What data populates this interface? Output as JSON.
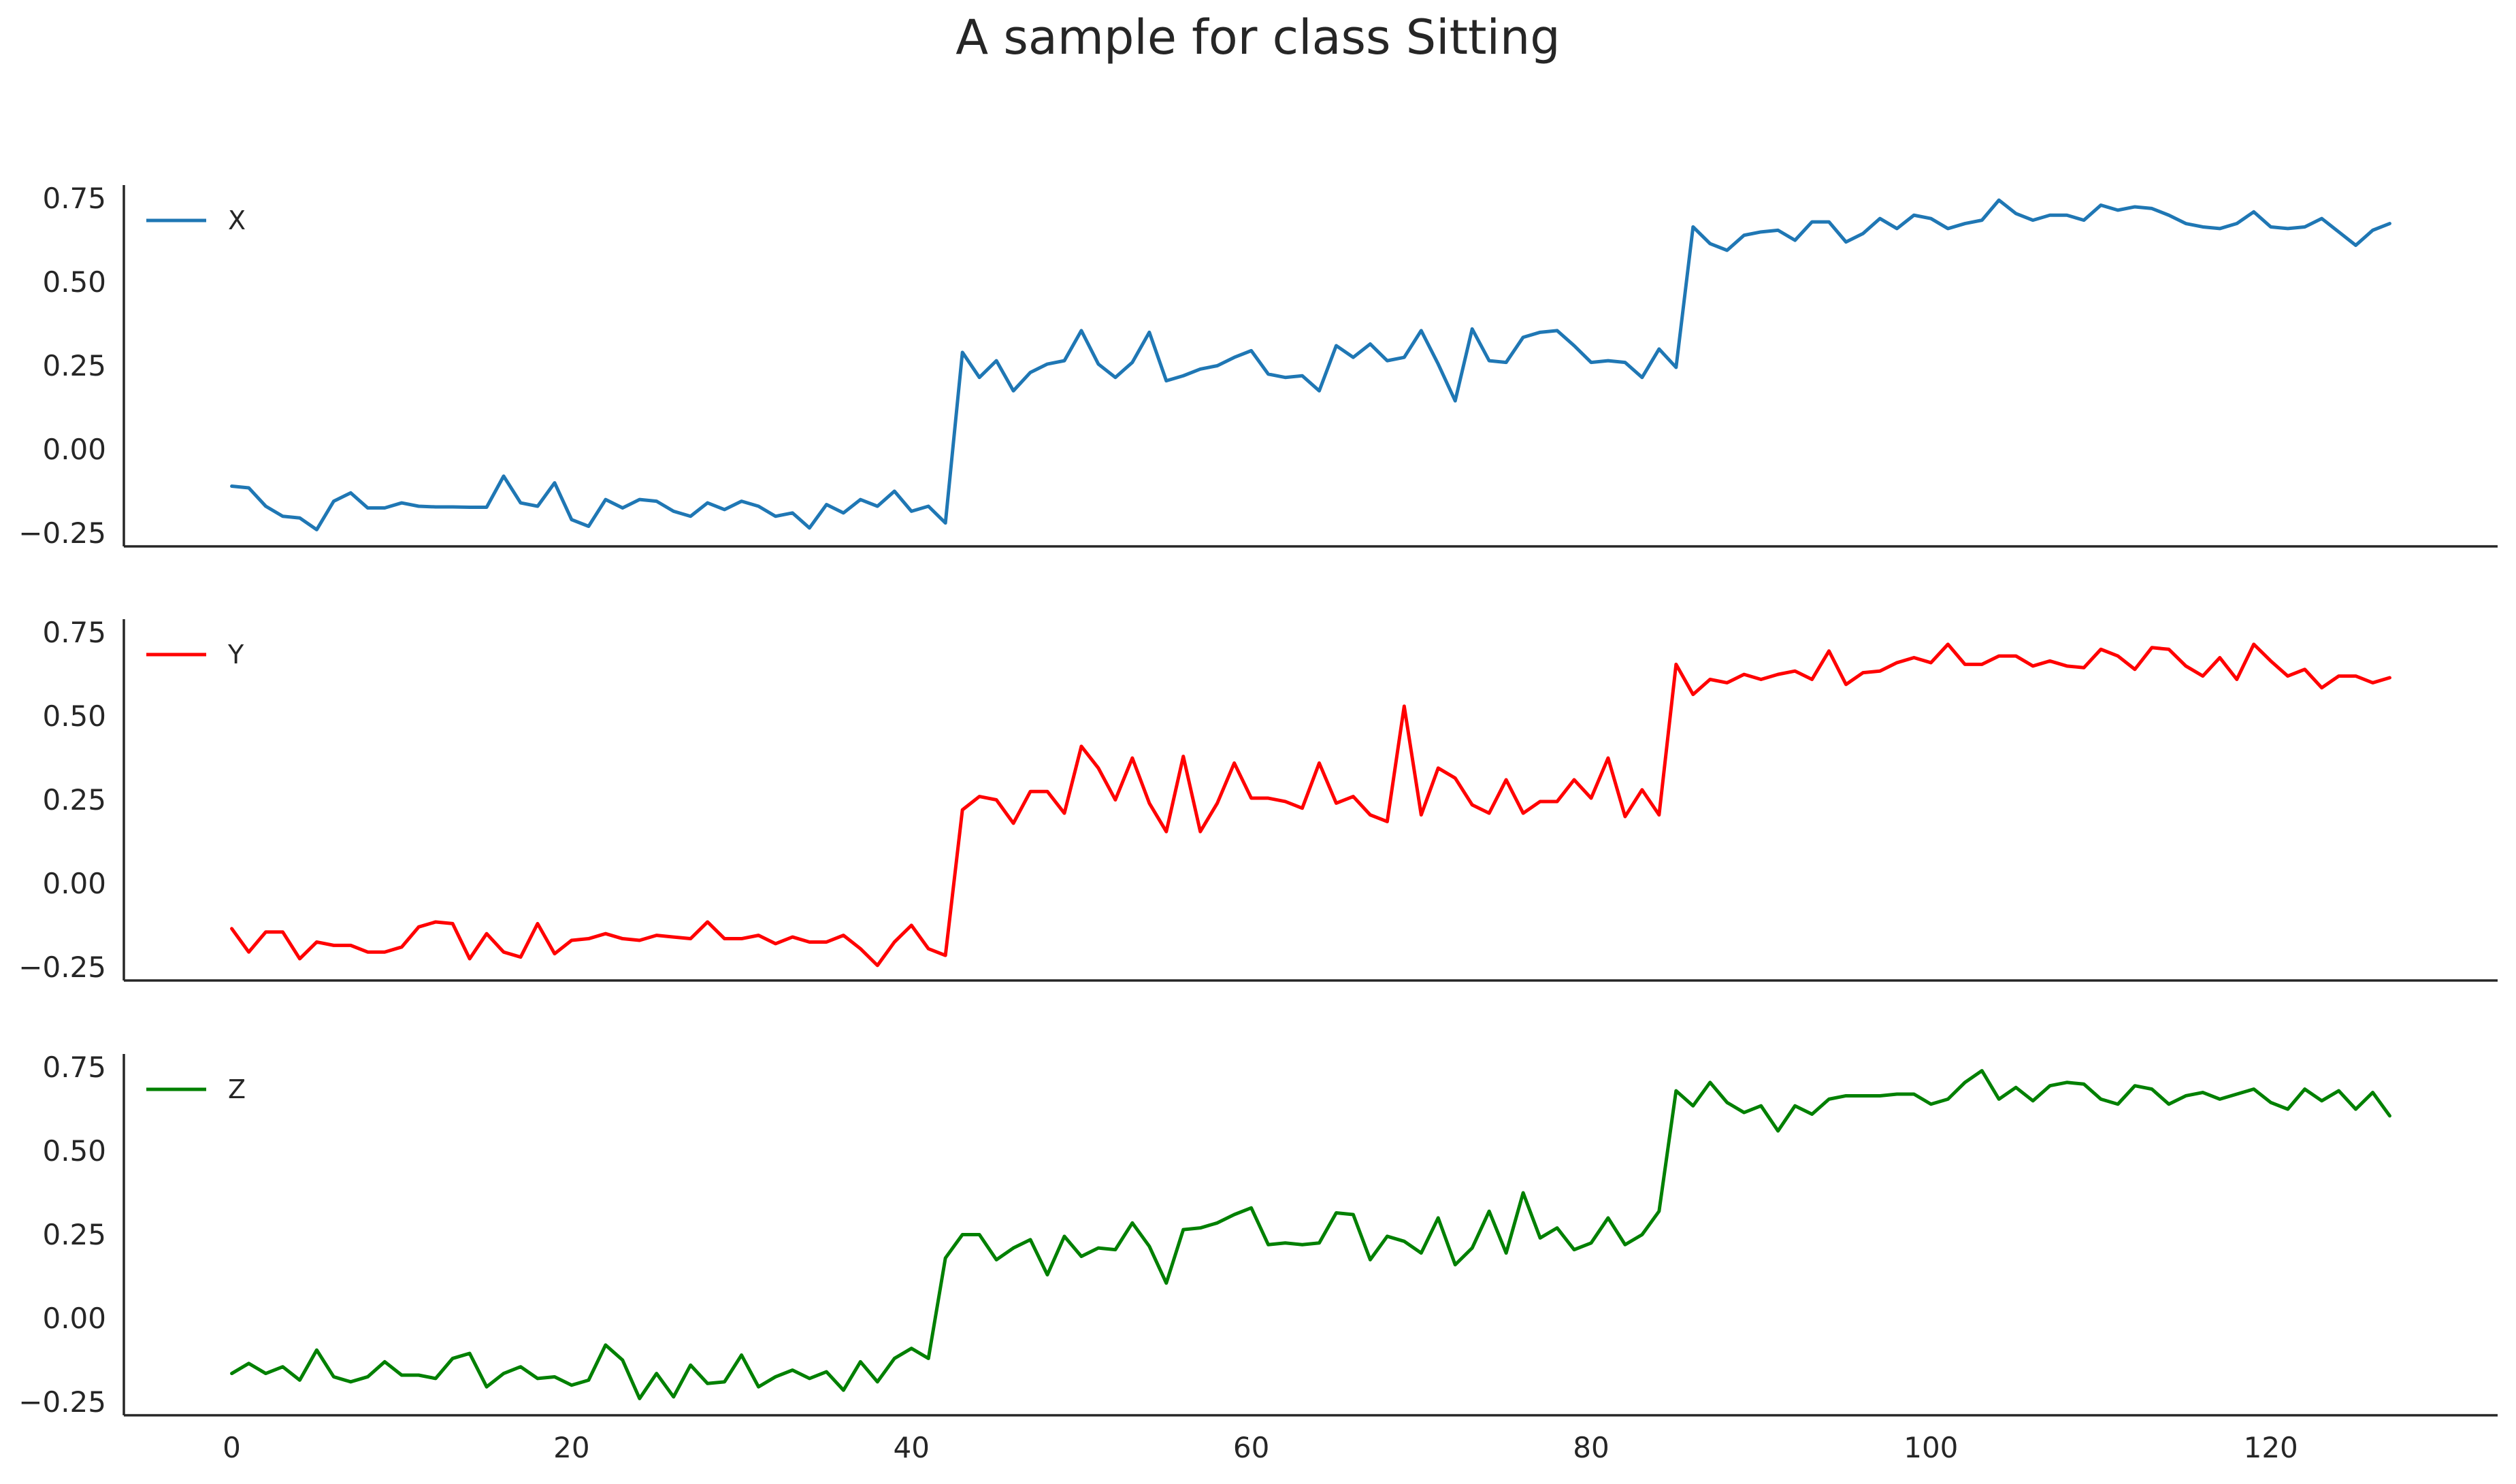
{
  "chart_data": {
    "type": "line",
    "title": "A sample for class Sitting",
    "xlabel": "",
    "ylabel": "",
    "x": [
      0,
      1,
      2,
      3,
      4,
      5,
      6,
      7,
      8,
      9,
      10,
      11,
      12,
      13,
      14,
      15,
      16,
      17,
      18,
      19,
      20,
      21,
      22,
      23,
      24,
      25,
      26,
      27,
      28,
      29,
      30,
      31,
      32,
      33,
      34,
      35,
      36,
      37,
      38,
      39,
      40,
      41,
      42,
      43,
      44,
      45,
      46,
      47,
      48,
      49,
      50,
      51,
      52,
      53,
      54,
      55,
      56,
      57,
      58,
      59,
      60,
      61,
      62,
      63,
      64,
      65,
      66,
      67,
      68,
      69,
      70,
      71,
      72,
      73,
      74,
      75,
      76,
      77,
      78,
      79,
      80,
      81,
      82,
      83,
      84,
      85,
      86,
      87,
      88,
      89,
      90,
      91,
      92,
      93,
      94,
      95,
      96,
      97,
      98,
      99,
      100,
      101,
      102,
      103,
      104,
      105,
      106,
      107,
      108,
      109,
      110,
      111,
      112,
      113,
      114,
      115,
      116,
      117,
      118,
      119,
      120,
      121,
      122,
      123,
      124,
      125,
      126,
      127
    ],
    "xlim": [
      -6.35,
      133.35
    ],
    "xticks": [
      0,
      20,
      40,
      60,
      80,
      100,
      120
    ],
    "ylim": [
      -0.29,
      0.79
    ],
    "yticks": [
      -0.25,
      0.0,
      0.25,
      0.5,
      0.75
    ],
    "ytick_labels": [
      "−0.25",
      "0.00",
      "0.25",
      "0.50",
      "0.75"
    ],
    "legend_position": "upper left",
    "grid": false,
    "shared_x": true,
    "series": [
      {
        "name": "X",
        "color": "#1f77b4",
        "values": [
          -0.11,
          -0.115,
          -0.17,
          -0.2,
          -0.205,
          -0.24,
          -0.155,
          -0.13,
          -0.175,
          -0.175,
          -0.16,
          -0.17,
          -0.172,
          -0.172,
          -0.173,
          -0.173,
          -0.08,
          -0.16,
          -0.17,
          -0.1,
          -0.21,
          -0.23,
          -0.15,
          -0.175,
          -0.15,
          -0.155,
          -0.185,
          -0.2,
          -0.16,
          -0.18,
          -0.155,
          -0.17,
          -0.2,
          -0.19,
          -0.235,
          -0.165,
          -0.19,
          -0.15,
          -0.17,
          -0.125,
          -0.185,
          -0.17,
          -0.22,
          0.29,
          0.215,
          0.265,
          0.175,
          0.23,
          0.255,
          0.265,
          0.355,
          0.255,
          0.215,
          0.26,
          0.35,
          0.205,
          0.22,
          0.24,
          0.25,
          0.275,
          0.295,
          0.225,
          0.215,
          0.22,
          0.175,
          0.31,
          0.275,
          0.315,
          0.265,
          0.275,
          0.355,
          0.255,
          0.145,
          0.36,
          0.265,
          0.26,
          0.335,
          0.35,
          0.355,
          0.31,
          0.26,
          0.265,
          0.26,
          0.215,
          0.3,
          0.245,
          0.665,
          0.615,
          0.595,
          0.64,
          0.65,
          0.655,
          0.625,
          0.68,
          0.68,
          0.62,
          0.645,
          0.69,
          0.66,
          0.7,
          0.69,
          0.66,
          0.675,
          0.685,
          0.745,
          0.705,
          0.685,
          0.7,
          0.7,
          0.685,
          0.73,
          0.715,
          0.725,
          0.72,
          0.7,
          0.675,
          0.665,
          0.66,
          0.675,
          0.71,
          0.665,
          0.66,
          0.665,
          0.69,
          0.65,
          0.61,
          0.655,
          0.675
        ]
      },
      {
        "name": "Y",
        "color": "#ff0000",
        "values": [
          -0.135,
          -0.205,
          -0.145,
          -0.145,
          -0.225,
          -0.175,
          -0.185,
          -0.185,
          -0.205,
          -0.205,
          -0.19,
          -0.13,
          -0.115,
          -0.12,
          -0.225,
          -0.15,
          -0.205,
          -0.22,
          -0.12,
          -0.21,
          -0.17,
          -0.165,
          -0.15,
          -0.165,
          -0.17,
          -0.155,
          -0.16,
          -0.165,
          -0.115,
          -0.165,
          -0.165,
          -0.155,
          -0.18,
          -0.16,
          -0.175,
          -0.175,
          -0.155,
          -0.195,
          -0.245,
          -0.175,
          -0.125,
          -0.195,
          -0.215,
          0.22,
          0.26,
          0.25,
          0.18,
          0.275,
          0.275,
          0.21,
          0.41,
          0.345,
          0.25,
          0.375,
          0.24,
          0.155,
          0.38,
          0.155,
          0.24,
          0.36,
          0.255,
          0.255,
          0.245,
          0.225,
          0.36,
          0.24,
          0.26,
          0.205,
          0.185,
          0.53,
          0.205,
          0.345,
          0.315,
          0.235,
          0.21,
          0.31,
          0.21,
          0.245,
          0.245,
          0.31,
          0.255,
          0.375,
          0.2,
          0.28,
          0.205,
          0.655,
          0.565,
          0.61,
          0.6,
          0.625,
          0.61,
          0.625,
          0.635,
          0.61,
          0.695,
          0.595,
          0.63,
          0.635,
          0.66,
          0.675,
          0.66,
          0.715,
          0.655,
          0.655,
          0.68,
          0.68,
          0.65,
          0.665,
          0.65,
          0.645,
          0.7,
          0.68,
          0.64,
          0.705,
          0.7,
          0.65,
          0.62,
          0.675,
          0.61,
          0.715,
          0.665,
          0.62,
          0.64,
          0.585,
          0.62,
          0.62,
          0.6,
          0.615
        ]
      },
      {
        "name": "Z",
        "color": "#008000",
        "values": [
          -0.165,
          -0.135,
          -0.165,
          -0.145,
          -0.185,
          -0.095,
          -0.175,
          -0.19,
          -0.175,
          -0.13,
          -0.17,
          -0.17,
          -0.18,
          -0.12,
          -0.105,
          -0.205,
          -0.165,
          -0.145,
          -0.18,
          -0.175,
          -0.2,
          -0.185,
          -0.08,
          -0.125,
          -0.24,
          -0.165,
          -0.235,
          -0.14,
          -0.195,
          -0.19,
          -0.11,
          -0.205,
          -0.175,
          -0.155,
          -0.18,
          -0.16,
          -0.215,
          -0.13,
          -0.19,
          -0.12,
          -0.09,
          -0.12,
          0.18,
          0.25,
          0.25,
          0.175,
          0.21,
          0.235,
          0.13,
          0.245,
          0.185,
          0.21,
          0.205,
          0.285,
          0.215,
          0.105,
          0.265,
          0.27,
          0.285,
          0.31,
          0.33,
          0.22,
          0.225,
          0.22,
          0.225,
          0.315,
          0.31,
          0.175,
          0.245,
          0.23,
          0.195,
          0.3,
          0.16,
          0.21,
          0.32,
          0.195,
          0.375,
          0.24,
          0.27,
          0.205,
          0.225,
          0.3,
          0.22,
          0.25,
          0.32,
          0.68,
          0.635,
          0.705,
          0.645,
          0.615,
          0.635,
          0.56,
          0.635,
          0.61,
          0.655,
          0.665,
          0.665,
          0.665,
          0.67,
          0.67,
          0.64,
          0.655,
          0.705,
          0.74,
          0.655,
          0.69,
          0.65,
          0.695,
          0.705,
          0.7,
          0.655,
          0.64,
          0.695,
          0.685,
          0.64,
          0.665,
          0.675,
          0.655,
          0.67,
          0.685,
          0.645,
          0.625,
          0.685,
          0.65,
          0.68,
          0.625,
          0.675,
          0.605
        ]
      }
    ]
  }
}
